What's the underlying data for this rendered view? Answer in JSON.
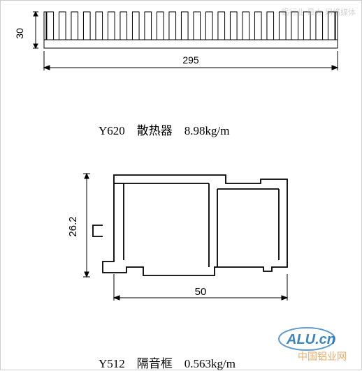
{
  "heatsink": {
    "part_no": "Y620",
    "name_cn": "散热器",
    "weight": "8.98kg/m",
    "dim_width": "295",
    "dim_height": "30",
    "fin_count": 24,
    "stroke_color": "#000000",
    "stroke_width": 1,
    "arrow_size": 5
  },
  "frame": {
    "part_no": "Y512",
    "name_cn": "隔音框",
    "weight": "0.563kg/m",
    "dim_width": "50",
    "dim_height": "26.2",
    "stroke_color": "#000000",
    "stroke_width": 1.8,
    "arrow_size": 5
  },
  "branding": {
    "logo_text": "ALU.cn",
    "watermark_top": "铝行业·最大·网络媒体",
    "watermark_mid": "中国铝业网"
  },
  "colors": {
    "bg": "#ffffff",
    "line": "#000000",
    "text": "#000000",
    "watermark": "#bbbbbb",
    "logo_blue": "#1b6fb5",
    "logo_orange": "#e08a2a"
  }
}
